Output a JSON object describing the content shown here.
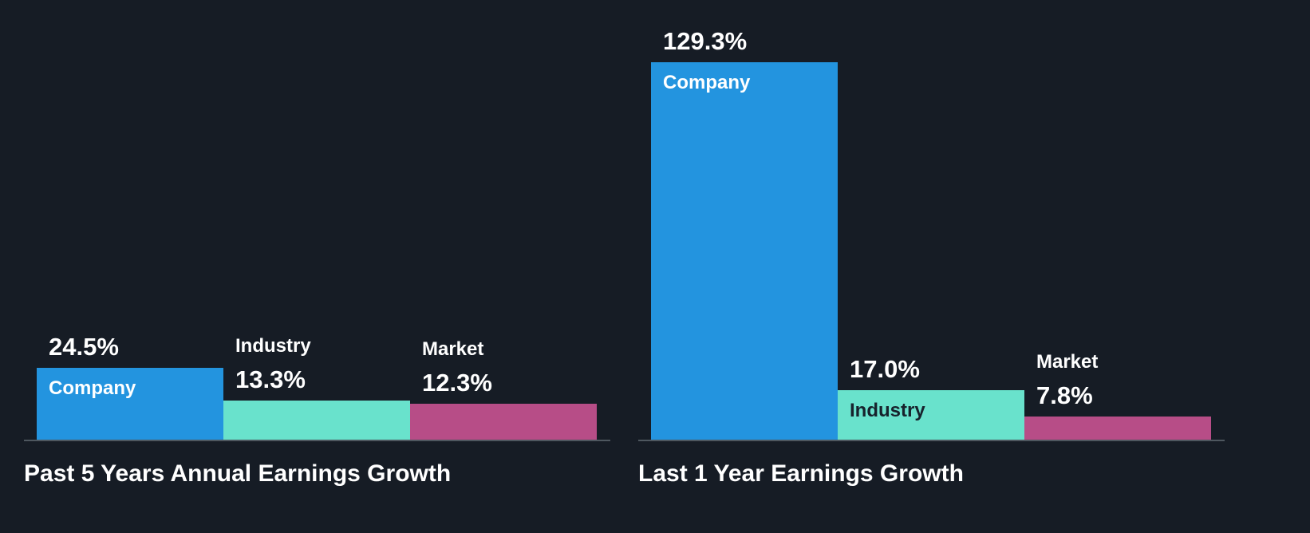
{
  "page": {
    "background_color": "#161c25",
    "baseline_color": "#4e575f",
    "text_color": "#ffffff"
  },
  "chart_data": [
    {
      "type": "bar",
      "title": "Past 5 Years Annual Earnings Growth",
      "categories": [
        "Company",
        "Industry",
        "Market"
      ],
      "values": [
        24.5,
        13.3,
        12.3
      ],
      "value_labels": [
        "24.5%",
        "13.3%",
        "12.3%"
      ],
      "colors": [
        "#2394df",
        "#69e2cc",
        "#b74d87"
      ],
      "inside_label_colors": [
        "#ffffff",
        "#17222c",
        "#ffffff"
      ],
      "xlabel": "",
      "ylabel": "",
      "ylim": [
        0,
        129.3
      ],
      "grid": false,
      "legend_position": "none",
      "axis_ticks_visible": false
    },
    {
      "type": "bar",
      "title": "Last 1 Year Earnings Growth",
      "categories": [
        "Company",
        "Industry",
        "Market"
      ],
      "values": [
        129.3,
        17.0,
        7.8
      ],
      "value_labels": [
        "129.3%",
        "17.0%",
        "7.8%"
      ],
      "colors": [
        "#2394df",
        "#69e2cc",
        "#b74d87"
      ],
      "inside_label_colors": [
        "#ffffff",
        "#17222c",
        "#ffffff"
      ],
      "xlabel": "",
      "ylabel": "",
      "ylim": [
        0,
        129.3
      ],
      "grid": false,
      "legend_position": "none",
      "axis_ticks_visible": false
    }
  ]
}
